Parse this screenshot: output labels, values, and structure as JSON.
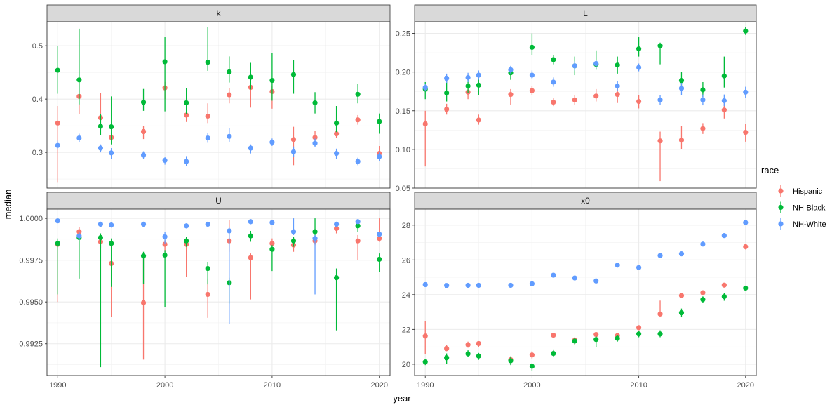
{
  "figure": {
    "xlabel": "year",
    "ylabel": "median",
    "legend_title": "race",
    "legend_placement": "right"
  },
  "colors": {
    "Hispanic": "#F8766D",
    "NH-Black": "#00BA38",
    "NH-White": "#619CFF",
    "strip_bg": "#D9D9D9",
    "grid": "#EBEBEB"
  },
  "chart_data": [
    {
      "type": "scatter",
      "panel": "k",
      "x_ticks": [
        1990,
        2000,
        2010,
        2020
      ],
      "y_ticks": [
        0.3,
        0.4,
        0.5
      ],
      "y_tick_labels": [
        "0.3",
        "0.4",
        "0.5"
      ],
      "xlim": [
        1989,
        2021
      ],
      "ylim": [
        0.233,
        0.545
      ],
      "grid": true,
      "series": [
        {
          "name": "Hispanic",
          "x": [
            1990,
            1992,
            1994,
            1995,
            1998,
            2000,
            2002,
            2004,
            2006,
            2008,
            2010,
            2012,
            2014,
            2016,
            2018,
            2020
          ],
          "y": [
            0.355,
            0.405,
            0.365,
            0.328,
            0.339,
            0.421,
            0.37,
            0.368,
            0.408,
            0.422,
            0.414,
            0.324,
            0.328,
            0.335,
            0.361,
            0.298
          ],
          "lo": [
            0.243,
            0.372,
            0.352,
            0.318,
            0.325,
            0.4,
            0.357,
            0.355,
            0.392,
            0.384,
            0.382,
            0.276,
            0.319,
            0.327,
            0.352,
            0.287
          ],
          "hi": [
            0.387,
            0.42,
            0.412,
            0.338,
            0.35,
            0.432,
            0.382,
            0.392,
            0.42,
            0.432,
            0.425,
            0.348,
            0.34,
            0.344,
            0.37,
            0.312
          ]
        },
        {
          "name": "NH-Black",
          "x": [
            1990,
            1992,
            1994,
            1995,
            1998,
            2000,
            2002,
            2004,
            2006,
            2008,
            2010,
            2012,
            2014,
            2016,
            2018,
            2020
          ],
          "y": [
            0.454,
            0.436,
            0.349,
            0.348,
            0.394,
            0.47,
            0.393,
            0.469,
            0.451,
            0.441,
            0.435,
            0.446,
            0.393,
            0.355,
            0.409,
            0.358
          ],
          "lo": [
            0.41,
            0.39,
            0.333,
            0.315,
            0.378,
            0.377,
            0.372,
            0.453,
            0.431,
            0.418,
            0.397,
            0.41,
            0.373,
            0.338,
            0.392,
            0.335
          ],
          "hi": [
            0.5,
            0.532,
            0.372,
            0.405,
            0.419,
            0.516,
            0.421,
            0.535,
            0.48,
            0.468,
            0.486,
            0.473,
            0.413,
            0.387,
            0.428,
            0.373
          ]
        },
        {
          "name": "NH-White",
          "x": [
            1990,
            1992,
            1994,
            1995,
            1998,
            2000,
            2002,
            2004,
            2006,
            2008,
            2010,
            2012,
            2014,
            2016,
            2018,
            2020
          ],
          "y": [
            0.313,
            0.327,
            0.308,
            0.299,
            0.295,
            0.285,
            0.283,
            0.327,
            0.33,
            0.308,
            0.319,
            0.301,
            0.317,
            0.298,
            0.283,
            0.292
          ],
          "lo": [
            0.305,
            0.319,
            0.3,
            0.287,
            0.287,
            0.277,
            0.275,
            0.318,
            0.32,
            0.298,
            0.312,
            0.292,
            0.31,
            0.287,
            0.276,
            0.283
          ],
          "hi": [
            0.322,
            0.335,
            0.315,
            0.308,
            0.302,
            0.292,
            0.293,
            0.336,
            0.345,
            0.315,
            0.326,
            0.311,
            0.326,
            0.307,
            0.29,
            0.3
          ]
        }
      ]
    },
    {
      "type": "scatter",
      "panel": "L",
      "x_ticks": [
        1990,
        2000,
        2010,
        2020
      ],
      "y_ticks": [
        0.05,
        0.1,
        0.15,
        0.2,
        0.25
      ],
      "y_tick_labels": [
        "0.05",
        "0.10",
        "0.15",
        "0.20",
        "0.25"
      ],
      "xlim": [
        1989,
        2021
      ],
      "ylim": [
        0.05,
        0.265
      ],
      "grid": true,
      "series": [
        {
          "name": "Hispanic",
          "x": [
            1990,
            1992,
            1994,
            1995,
            1998,
            2000,
            2002,
            2004,
            2006,
            2008,
            2010,
            2012,
            2014,
            2016,
            2018,
            2020
          ],
          "y": [
            0.133,
            0.152,
            0.174,
            0.138,
            0.171,
            0.176,
            0.161,
            0.164,
            0.169,
            0.171,
            0.162,
            0.111,
            0.112,
            0.127,
            0.151,
            0.122
          ],
          "lo": [
            0.078,
            0.145,
            0.165,
            0.132,
            0.158,
            0.17,
            0.156,
            0.158,
            0.162,
            0.16,
            0.153,
            0.059,
            0.1,
            0.12,
            0.14,
            0.11
          ],
          "hi": [
            0.15,
            0.159,
            0.183,
            0.145,
            0.178,
            0.182,
            0.166,
            0.17,
            0.178,
            0.18,
            0.17,
            0.123,
            0.13,
            0.134,
            0.16,
            0.133
          ]
        },
        {
          "name": "NH-Black",
          "x": [
            1990,
            1992,
            1994,
            1995,
            1998,
            2000,
            2002,
            2004,
            2006,
            2008,
            2010,
            2012,
            2014,
            2016,
            2018,
            2020
          ],
          "y": [
            0.178,
            0.173,
            0.182,
            0.183,
            0.199,
            0.232,
            0.216,
            0.208,
            0.21,
            0.209,
            0.23,
            0.234,
            0.189,
            0.177,
            0.195,
            0.253
          ],
          "lo": [
            0.165,
            0.162,
            0.173,
            0.17,
            0.19,
            0.222,
            0.21,
            0.196,
            0.203,
            0.198,
            0.22,
            0.21,
            0.182,
            0.168,
            0.18,
            0.248
          ],
          "hi": [
            0.187,
            0.188,
            0.19,
            0.196,
            0.205,
            0.25,
            0.222,
            0.22,
            0.228,
            0.22,
            0.245,
            0.238,
            0.2,
            0.187,
            0.22,
            0.258
          ]
        },
        {
          "name": "NH-White",
          "x": [
            1990,
            1992,
            1994,
            1995,
            1998,
            2000,
            2002,
            2004,
            2006,
            2008,
            2010,
            2012,
            2014,
            2016,
            2018,
            2020
          ],
          "y": [
            0.18,
            0.192,
            0.193,
            0.196,
            0.203,
            0.196,
            0.187,
            0.208,
            0.211,
            0.182,
            0.206,
            0.164,
            0.179,
            0.164,
            0.163,
            0.174
          ],
          "lo": [
            0.176,
            0.186,
            0.187,
            0.19,
            0.198,
            0.191,
            0.181,
            0.202,
            0.205,
            0.176,
            0.201,
            0.158,
            0.17,
            0.157,
            0.156,
            0.167
          ],
          "hi": [
            0.185,
            0.198,
            0.199,
            0.202,
            0.208,
            0.202,
            0.193,
            0.214,
            0.216,
            0.188,
            0.211,
            0.17,
            0.186,
            0.171,
            0.171,
            0.181
          ]
        }
      ]
    },
    {
      "type": "scatter",
      "panel": "U",
      "x_ticks": [
        1990,
        2000,
        2010,
        2020
      ],
      "y_ticks": [
        0.9925,
        0.995,
        0.9975,
        1.0
      ],
      "y_tick_labels": [
        "0.9925",
        "0.9950",
        "0.9975",
        "1.0000"
      ],
      "xlim": [
        1989,
        2021
      ],
      "ylim": [
        0.9906,
        1.00055
      ],
      "grid": true,
      "series": [
        {
          "name": "Hispanic",
          "x": [
            1990,
            1992,
            1994,
            1995,
            1998,
            2000,
            2002,
            2004,
            2006,
            2008,
            2010,
            2012,
            2014,
            2016,
            2018,
            2020
          ],
          "y": [
            0.99845,
            0.9992,
            0.9986,
            0.9973,
            0.99495,
            0.99845,
            0.99845,
            0.99545,
            0.99865,
            0.99765,
            0.9985,
            0.9984,
            0.99865,
            0.9994,
            0.99865,
            0.9988
          ],
          "lo": [
            0.995,
            0.9989,
            0.9982,
            0.9941,
            0.99155,
            0.998,
            0.9965,
            0.99405,
            0.998,
            0.99515,
            0.998,
            0.998,
            0.9984,
            0.9991,
            0.9975,
            0.9986
          ],
          "hi": [
            0.9986,
            0.9995,
            0.99885,
            0.9976,
            0.9979,
            0.9987,
            0.9987,
            0.9964,
            0.9999,
            0.9979,
            0.9988,
            0.9987,
            0.99885,
            0.99965,
            0.999,
            1.0
          ]
        },
        {
          "name": "NH-Black",
          "x": [
            1990,
            1992,
            1994,
            1995,
            1998,
            2000,
            2002,
            2004,
            2006,
            2008,
            2010,
            2012,
            2014,
            2016,
            2018,
            2020
          ],
          "y": [
            0.9985,
            0.99885,
            0.99885,
            0.9985,
            0.99775,
            0.9978,
            0.99865,
            0.997,
            0.99615,
            0.99895,
            0.99815,
            0.99865,
            0.9992,
            0.99645,
            0.99955,
            0.99755
          ],
          "lo": [
            0.99545,
            0.9964,
            0.9911,
            0.9959,
            0.9961,
            0.9947,
            0.9983,
            0.99605,
            0.9949,
            0.9986,
            0.99685,
            0.9983,
            0.9988,
            0.9933,
            0.9992,
            0.9968
          ],
          "hi": [
            0.9988,
            0.99915,
            0.9991,
            0.9988,
            0.998,
            0.9981,
            0.9989,
            0.9974,
            0.99645,
            0.99925,
            0.9984,
            0.9989,
            1.0,
            0.997,
            0.9998,
            0.9979
          ]
        },
        {
          "name": "NH-White",
          "x": [
            1990,
            1992,
            1994,
            1995,
            1998,
            2000,
            2002,
            2004,
            2006,
            2008,
            2010,
            2012,
            2014,
            2016,
            2018,
            2020
          ],
          "y": [
            0.99985,
            0.99895,
            0.99965,
            0.9996,
            0.99965,
            0.9989,
            0.99955,
            0.99965,
            0.99925,
            0.9998,
            0.99975,
            0.9992,
            0.9988,
            0.99965,
            0.9998,
            0.99905
          ],
          "lo": [
            0.9997,
            0.9987,
            0.9995,
            0.99945,
            0.9995,
            0.9985,
            0.9994,
            0.9995,
            0.9937,
            0.99965,
            0.9996,
            0.999,
            0.99545,
            0.9995,
            0.9997,
            0.9989
          ],
          "hi": [
            1.0,
            0.9992,
            0.9998,
            0.99975,
            0.9998,
            0.9992,
            0.9997,
            0.9998,
            0.99945,
            0.99995,
            0.9999,
            1.0,
            0.999,
            0.9998,
            0.99995,
            0.9992
          ]
        }
      ]
    },
    {
      "type": "scatter",
      "panel": "x0",
      "x_ticks": [
        1990,
        2000,
        2010,
        2020
      ],
      "y_ticks": [
        20,
        22,
        24,
        26,
        28
      ],
      "y_tick_labels": [
        "20",
        "22",
        "24",
        "26",
        "28"
      ],
      "xlim": [
        1989,
        2021
      ],
      "ylim": [
        19.35,
        28.92
      ],
      "grid": true,
      "series": [
        {
          "name": "Hispanic",
          "x": [
            1990,
            1992,
            1994,
            1995,
            1998,
            2000,
            2002,
            2004,
            2006,
            2008,
            2010,
            2012,
            2014,
            2016,
            2018,
            2020
          ],
          "y": [
            21.62,
            20.9,
            21.12,
            21.19,
            20.26,
            20.53,
            21.67,
            21.38,
            21.71,
            21.65,
            22.1,
            22.89,
            23.95,
            24.11,
            24.55,
            26.76
          ],
          "lo": [
            20.6,
            20.75,
            20.95,
            21.0,
            20.05,
            20.3,
            21.5,
            21.1,
            21.55,
            21.5,
            21.97,
            22.7,
            23.8,
            23.95,
            24.45,
            26.6
          ],
          "hi": [
            22.5,
            21.1,
            21.3,
            21.3,
            20.45,
            20.75,
            21.8,
            21.55,
            21.82,
            21.8,
            22.2,
            23.66,
            24.1,
            24.25,
            24.65,
            26.9
          ]
        },
        {
          "name": "NH-Black",
          "x": [
            1990,
            1992,
            1994,
            1995,
            1998,
            2000,
            2002,
            2004,
            2006,
            2008,
            2010,
            2012,
            2014,
            2016,
            2018,
            2020
          ],
          "y": [
            20.13,
            20.37,
            20.6,
            20.47,
            20.2,
            19.88,
            20.62,
            21.33,
            21.42,
            21.49,
            21.74,
            21.74,
            22.96,
            23.72,
            23.89,
            24.38
          ],
          "lo": [
            19.95,
            20.0,
            20.4,
            20.25,
            19.95,
            19.6,
            20.4,
            21.15,
            21.0,
            21.3,
            21.55,
            21.55,
            22.7,
            23.55,
            23.65,
            24.25
          ],
          "hi": [
            20.3,
            20.62,
            20.8,
            20.65,
            20.45,
            20.05,
            20.85,
            21.5,
            21.62,
            21.65,
            21.9,
            21.95,
            23.2,
            23.9,
            24.1,
            24.5
          ]
        },
        {
          "name": "NH-White",
          "x": [
            1990,
            1992,
            1994,
            1995,
            1998,
            2000,
            2002,
            2004,
            2006,
            2008,
            2010,
            2012,
            2014,
            2016,
            2018,
            2020
          ],
          "y": [
            24.58,
            24.53,
            24.54,
            24.54,
            24.54,
            24.63,
            25.12,
            24.96,
            24.79,
            25.7,
            25.56,
            26.25,
            26.35,
            26.91,
            27.4,
            28.15
          ],
          "lo": [
            24.5,
            24.45,
            24.45,
            24.45,
            24.45,
            24.55,
            25.0,
            24.88,
            24.7,
            25.62,
            25.48,
            26.15,
            26.27,
            26.82,
            27.3,
            28.02
          ],
          "hi": [
            24.67,
            24.62,
            24.62,
            24.62,
            24.62,
            24.72,
            25.23,
            25.05,
            24.88,
            25.78,
            25.65,
            26.35,
            26.43,
            27.0,
            27.5,
            28.3
          ]
        }
      ]
    }
  ]
}
